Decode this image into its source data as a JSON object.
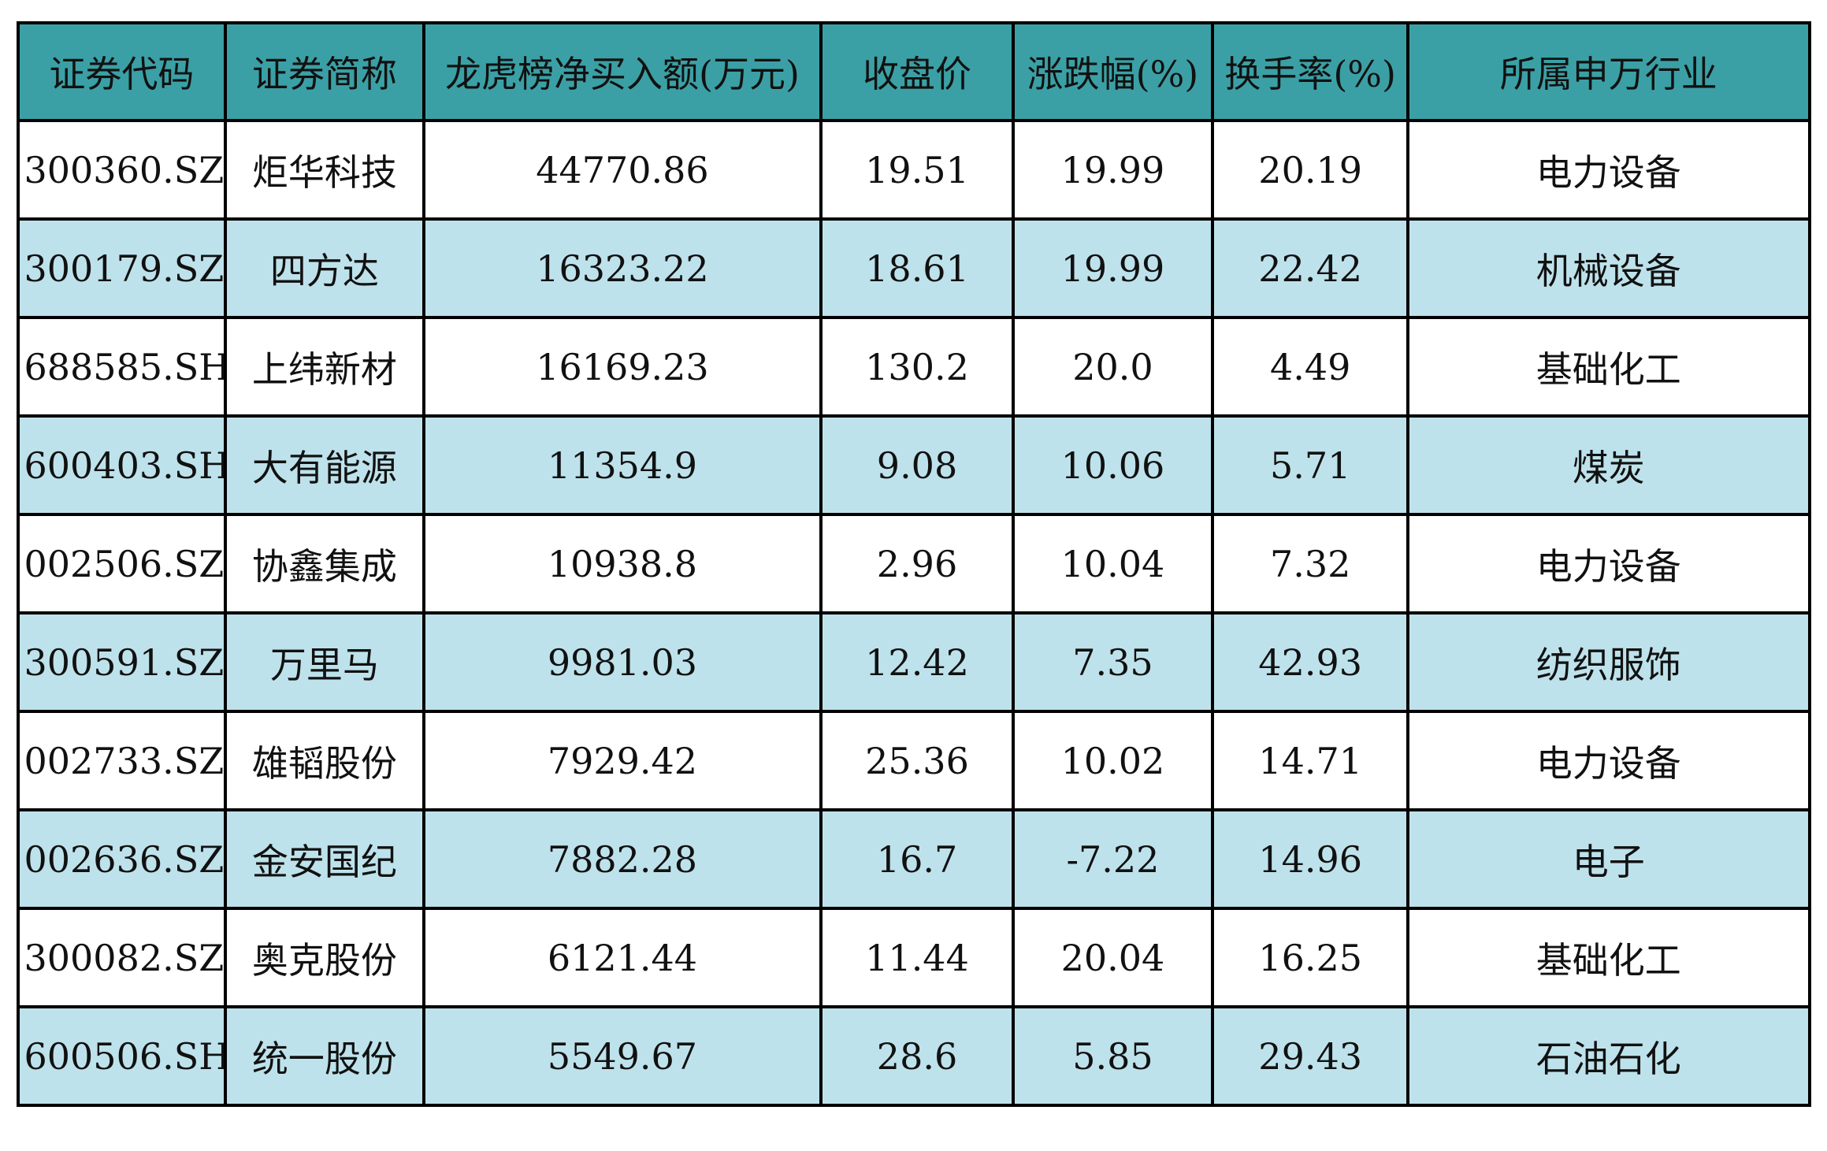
{
  "chart_data": {
    "type": "table",
    "columns": [
      "证券代码",
      "证券简称",
      "龙虎榜净买入额(万元)",
      "收盘价",
      "涨跌幅(%)",
      "换手率(%)",
      "所属申万行业"
    ],
    "rows": [
      [
        "300360.SZ",
        "炬华科技",
        "44770.86",
        "19.51",
        "19.99",
        "20.19",
        "电力设备"
      ],
      [
        "300179.SZ",
        "四方达",
        "16323.22",
        "18.61",
        "19.99",
        "22.42",
        "机械设备"
      ],
      [
        "688585.SH",
        "上纬新材",
        "16169.23",
        "130.2",
        "20.0",
        "4.49",
        "基础化工"
      ],
      [
        "600403.SH",
        "大有能源",
        "11354.9",
        "9.08",
        "10.06",
        "5.71",
        "煤炭"
      ],
      [
        "002506.SZ",
        "协鑫集成",
        "10938.8",
        "2.96",
        "10.04",
        "7.32",
        "电力设备"
      ],
      [
        "300591.SZ",
        "万里马",
        "9981.03",
        "12.42",
        "7.35",
        "42.93",
        "纺织服饰"
      ],
      [
        "002733.SZ",
        "雄韬股份",
        "7929.42",
        "25.36",
        "10.02",
        "14.71",
        "电力设备"
      ],
      [
        "002636.SZ",
        "金安国纪",
        "7882.28",
        "16.7",
        "-7.22",
        "14.96",
        "电子"
      ],
      [
        "300082.SZ",
        "奥克股份",
        "6121.44",
        "11.44",
        "20.04",
        "16.25",
        "基础化工"
      ],
      [
        "600506.SH",
        "统一股份",
        "5549.67",
        "28.6",
        "5.85",
        "29.43",
        "石油石化"
      ]
    ],
    "layout": {
      "striped": true,
      "stripe_rows": "even rows (2nd, 4th, ...) tinted light blue",
      "alignment": "center"
    }
  },
  "colors": {
    "header_bg": "#3BA0A5",
    "alt_row_bg": "#BEE2EB",
    "border": "#000000",
    "text": "#111111",
    "page_bg": "#FFFFFF"
  }
}
